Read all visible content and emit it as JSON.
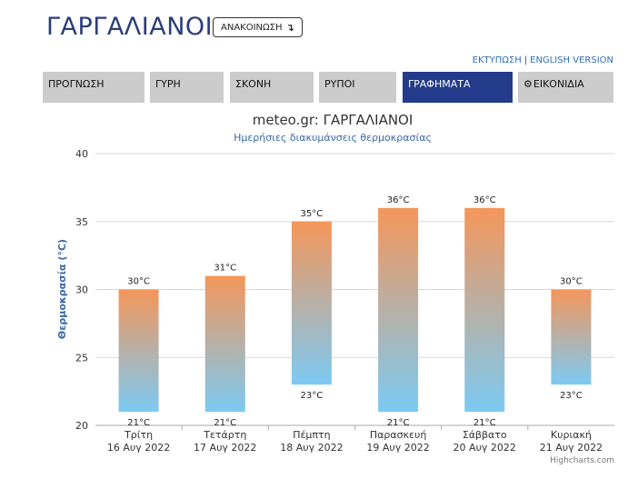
{
  "header": {
    "title": "ΓΑΡΓΑΛΙΑΝΟΙ",
    "announce_label": "ΑΝΑΚΟΙΝΩΣΗ",
    "announce_icon": "↴"
  },
  "top_links": {
    "print": "ΕΚΤΥΠΩΣΗ",
    "separator": "|",
    "english": "ENGLISH VERSION"
  },
  "tabs": [
    {
      "label": "ΠΡΟΓΝΩΣΗ",
      "active": false
    },
    {
      "label": "ΓΥΡΗ",
      "active": false
    },
    {
      "label": "ΣΚΟΝΗ",
      "active": false
    },
    {
      "label": "ΡΥΠΟΙ",
      "active": false
    },
    {
      "label": "ΓΡΑΦΗΜΑΤΑ",
      "active": true
    },
    {
      "label": "ΕΙΚΟΝΙΔΙΑ",
      "active": false,
      "icon": "gear-icon"
    }
  ],
  "colors": {
    "title": "#2b3d7a",
    "active_tab": "#233b8a",
    "bar_top": "#f4965a",
    "bar_bottom": "#7ccaf3",
    "subtitle": "#3a68a8"
  },
  "chart_data": {
    "type": "columnrange",
    "title": "meteo.gr: ΓΑΡΓΑΛΙΑΝΟΙ",
    "subtitle": "Ημερήσιες διακυμάνσεις θερμοκρασίας",
    "ylabel": "Θερμοκρασία (°C)",
    "ylim": [
      20,
      40
    ],
    "yticks": [
      20,
      25,
      30,
      35,
      40
    ],
    "unit": "°C",
    "grid": true,
    "legend": "none",
    "categories": [
      {
        "day": "Τρίτη",
        "date": "16 Αυγ 2022"
      },
      {
        "day": "Τετάρτη",
        "date": "17 Αυγ 2022"
      },
      {
        "day": "Πέμπτη",
        "date": "18 Αυγ 2022"
      },
      {
        "day": "Παρασκευή",
        "date": "19 Αυγ 2022"
      },
      {
        "day": "Σάββατο",
        "date": "20 Αυγ 2022"
      },
      {
        "day": "Κυριακή",
        "date": "21 Αυγ 2022"
      }
    ],
    "low": [
      21,
      21,
      23,
      21,
      21,
      23
    ],
    "high": [
      30,
      31,
      35,
      36,
      36,
      30
    ],
    "credit": "Highcharts.com"
  }
}
